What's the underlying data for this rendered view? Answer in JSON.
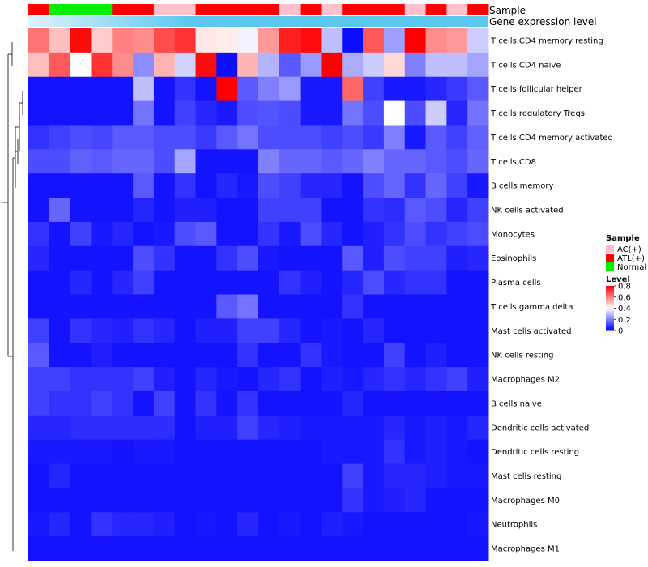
{
  "chart_data": {
    "type": "heatmap",
    "title": "",
    "annotation_tracks": {
      "sample_label": "Sample",
      "expression_label": "Gene expression level"
    },
    "sample_groups": [
      "ATL(+)",
      "Normal",
      "Normal",
      "Normal",
      "ATL(+)",
      "ATL(+)",
      "AC(+)",
      "AC(+)",
      "ATL(+)",
      "ATL(+)",
      "ATL(+)",
      "ATL(+)",
      "AC(+)",
      "ATL(+)",
      "AC(+)",
      "ATL(+)",
      "ATL(+)",
      "ATL(+)",
      "AC(+)",
      "ATL(+)",
      "AC(+)",
      "ATL(+)"
    ],
    "rows": [
      "T cells CD4 memory resting",
      "T cells CD4 naive",
      "T cells follicular helper",
      "T cells regulatory  Tregs",
      "T cells CD4 memory activated",
      "T cells CD8",
      "B cells memory",
      "NK cells activated",
      "Monocytes",
      "Eosinophils",
      "Plasma cells",
      "T cells gamma delta",
      "Mast cells activated",
      "NK cells resting",
      "Macrophages M2",
      "B cells naive",
      "Dendritic cells activated",
      "Dendritic cells resting",
      "Mast cells resting",
      "Macrophages M0",
      "Neutrophils",
      "Macrophages M1"
    ],
    "values": [
      [
        0.62,
        0.5,
        0.78,
        0.48,
        0.6,
        0.58,
        0.68,
        0.72,
        0.44,
        0.43,
        0.38,
        0.56,
        0.75,
        0.78,
        0.3,
        0.02,
        0.66,
        0.25,
        0.8,
        0.58,
        0.56,
        0.32
      ],
      [
        0.5,
        0.66,
        0.4,
        0.72,
        0.58,
        0.22,
        0.52,
        0.33,
        0.78,
        0.02,
        0.52,
        0.28,
        0.14,
        0.24,
        0.8,
        0.27,
        0.32,
        0.46,
        0.2,
        0.3,
        0.3,
        0.26
      ],
      [
        0.03,
        0.03,
        0.03,
        0.03,
        0.03,
        0.3,
        0.03,
        0.08,
        0.03,
        0.8,
        0.14,
        0.2,
        0.24,
        0.04,
        0.04,
        0.64,
        0.1,
        0.04,
        0.04,
        0.06,
        0.09,
        0.14
      ],
      [
        0.03,
        0.03,
        0.03,
        0.03,
        0.03,
        0.18,
        0.03,
        0.1,
        0.06,
        0.04,
        0.12,
        0.13,
        0.12,
        0.04,
        0.04,
        0.18,
        0.12,
        0.4,
        0.12,
        0.32,
        0.06,
        0.18
      ],
      [
        0.08,
        0.1,
        0.12,
        0.11,
        0.14,
        0.14,
        0.12,
        0.12,
        0.09,
        0.14,
        0.18,
        0.12,
        0.12,
        0.12,
        0.1,
        0.12,
        0.09,
        0.2,
        0.04,
        0.14,
        0.1,
        0.15
      ],
      [
        0.12,
        0.12,
        0.15,
        0.14,
        0.16,
        0.16,
        0.12,
        0.26,
        0.03,
        0.03,
        0.03,
        0.2,
        0.16,
        0.16,
        0.14,
        0.16,
        0.2,
        0.16,
        0.16,
        0.14,
        0.12,
        0.16
      ],
      [
        0.03,
        0.03,
        0.03,
        0.03,
        0.03,
        0.14,
        0.03,
        0.08,
        0.03,
        0.06,
        0.04,
        0.12,
        0.1,
        0.06,
        0.06,
        0.03,
        0.12,
        0.16,
        0.08,
        0.16,
        0.1,
        0.04
      ],
      [
        0.03,
        0.16,
        0.03,
        0.03,
        0.03,
        0.06,
        0.03,
        0.05,
        0.05,
        0.03,
        0.03,
        0.1,
        0.1,
        0.1,
        0.03,
        0.03,
        0.08,
        0.07,
        0.14,
        0.12,
        0.06,
        0.1
      ],
      [
        0.08,
        0.03,
        0.1,
        0.04,
        0.06,
        0.03,
        0.04,
        0.12,
        0.14,
        0.03,
        0.03,
        0.08,
        0.04,
        0.12,
        0.06,
        0.03,
        0.05,
        0.08,
        0.12,
        0.08,
        0.1,
        0.12
      ],
      [
        0.06,
        0.03,
        0.03,
        0.03,
        0.03,
        0.12,
        0.08,
        0.03,
        0.03,
        0.08,
        0.12,
        0.04,
        0.03,
        0.03,
        0.03,
        0.14,
        0.05,
        0.12,
        0.1,
        0.1,
        0.05,
        0.06
      ],
      [
        0.03,
        0.03,
        0.06,
        0.03,
        0.06,
        0.1,
        0.03,
        0.03,
        0.03,
        0.03,
        0.03,
        0.03,
        0.08,
        0.05,
        0.03,
        0.06,
        0.12,
        0.06,
        0.08,
        0.08,
        0.03,
        0.03
      ],
      [
        0.03,
        0.03,
        0.03,
        0.03,
        0.03,
        0.03,
        0.03,
        0.03,
        0.03,
        0.14,
        0.18,
        0.03,
        0.03,
        0.03,
        0.03,
        0.08,
        0.03,
        0.03,
        0.03,
        0.03,
        0.03,
        0.03
      ],
      [
        0.1,
        0.03,
        0.08,
        0.06,
        0.05,
        0.08,
        0.06,
        0.03,
        0.05,
        0.05,
        0.1,
        0.1,
        0.06,
        0.03,
        0.04,
        0.03,
        0.06,
        0.03,
        0.03,
        0.03,
        0.03,
        0.03
      ],
      [
        0.14,
        0.03,
        0.03,
        0.05,
        0.03,
        0.03,
        0.03,
        0.03,
        0.03,
        0.03,
        0.08,
        0.03,
        0.03,
        0.08,
        0.04,
        0.03,
        0.03,
        0.1,
        0.03,
        0.05,
        0.03,
        0.03
      ],
      [
        0.1,
        0.1,
        0.08,
        0.08,
        0.08,
        0.1,
        0.05,
        0.03,
        0.06,
        0.04,
        0.03,
        0.06,
        0.08,
        0.03,
        0.05,
        0.04,
        0.06,
        0.08,
        0.06,
        0.08,
        0.1,
        0.05
      ],
      [
        0.1,
        0.08,
        0.08,
        0.1,
        0.08,
        0.03,
        0.1,
        0.03,
        0.08,
        0.03,
        0.08,
        0.03,
        0.03,
        0.03,
        0.03,
        0.06,
        0.03,
        0.03,
        0.03,
        0.03,
        0.03,
        0.03
      ],
      [
        0.06,
        0.06,
        0.07,
        0.07,
        0.07,
        0.07,
        0.07,
        0.03,
        0.05,
        0.05,
        0.1,
        0.06,
        0.05,
        0.04,
        0.04,
        0.04,
        0.04,
        0.06,
        0.04,
        0.05,
        0.04,
        0.06
      ],
      [
        0.04,
        0.04,
        0.04,
        0.04,
        0.03,
        0.04,
        0.04,
        0.03,
        0.03,
        0.03,
        0.03,
        0.03,
        0.03,
        0.03,
        0.04,
        0.04,
        0.04,
        0.08,
        0.04,
        0.05,
        0.04,
        0.03
      ],
      [
        0.03,
        0.06,
        0.03,
        0.03,
        0.03,
        0.03,
        0.03,
        0.03,
        0.03,
        0.03,
        0.03,
        0.03,
        0.03,
        0.03,
        0.03,
        0.1,
        0.04,
        0.06,
        0.06,
        0.05,
        0.04,
        0.04
      ],
      [
        0.03,
        0.03,
        0.03,
        0.03,
        0.03,
        0.03,
        0.03,
        0.03,
        0.03,
        0.03,
        0.03,
        0.03,
        0.03,
        0.03,
        0.03,
        0.08,
        0.04,
        0.05,
        0.06,
        0.03,
        0.03,
        0.03
      ],
      [
        0.04,
        0.06,
        0.03,
        0.08,
        0.06,
        0.06,
        0.05,
        0.03,
        0.04,
        0.03,
        0.06,
        0.03,
        0.04,
        0.03,
        0.05,
        0.04,
        0.03,
        0.03,
        0.03,
        0.03,
        0.03,
        0.04
      ],
      [
        0.03,
        0.03,
        0.03,
        0.03,
        0.03,
        0.03,
        0.03,
        0.03,
        0.03,
        0.03,
        0.03,
        0.03,
        0.03,
        0.03,
        0.03,
        0.03,
        0.03,
        0.03,
        0.03,
        0.03,
        0.03,
        0.03
      ]
    ],
    "color_scale": {
      "min": 0,
      "max": 0.8,
      "colors": [
        "#0000ff",
        "#ffffff",
        "#ff0000"
      ]
    },
    "legend": {
      "sample_title": "Sample",
      "sample_entries": [
        {
          "label": "AC(+)",
          "color": "#ffc0cb"
        },
        {
          "label": "ATL(+)",
          "color": "#ff0000"
        },
        {
          "label": "Normal",
          "color": "#00ee00"
        }
      ],
      "level_title": "Level",
      "level_ticks": [
        0.8,
        0.6,
        0.4,
        0.2,
        0
      ],
      "position": "right"
    },
    "expression_track_color": "#5bc8f0"
  }
}
